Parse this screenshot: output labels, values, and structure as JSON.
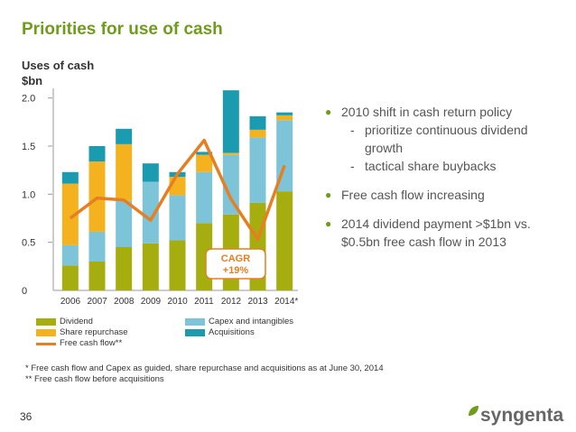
{
  "slide": {
    "title": "Priorities for use of cash",
    "subtitle_line1": "Uses of cash",
    "subtitle_line2": "$bn",
    "page_number": "36",
    "logo_text": "syngenta"
  },
  "bullets": [
    {
      "text": "2010 shift in cash return policy",
      "subs": [
        "prioritize continuous dividend growth",
        "tactical share buybacks"
      ]
    },
    {
      "text": "Free cash flow increasing",
      "subs": []
    },
    {
      "text": "2014 dividend payment >$1bn vs. $0.5bn free cash flow in 2013",
      "subs": []
    }
  ],
  "legend": [
    {
      "label": "Dividend",
      "color": "#a5ad0f",
      "kind": "box"
    },
    {
      "label": "Capex and intangibles",
      "color": "#7ec4d8",
      "kind": "box"
    },
    {
      "label": "Share repurchase",
      "color": "#f5b21f",
      "kind": "box"
    },
    {
      "label": "Acquisitions",
      "color": "#1a9bb0",
      "kind": "box"
    },
    {
      "label": "Free cash flow**",
      "color": "#e67e22",
      "kind": "line"
    }
  ],
  "notes": [
    "*   Free cash flow and Capex as guided, share repurchase and acquisitions as at June 30, 2014",
    "**  Free cash flow before acquisitions"
  ],
  "chart_data": {
    "type": "bar",
    "stacked": true,
    "categories": [
      "2006",
      "2007",
      "2008",
      "2009",
      "2010",
      "2011",
      "2012",
      "2013",
      "2014*"
    ],
    "ylim": [
      0,
      2.1
    ],
    "yticks": [
      "0",
      "0.5",
      "1.0",
      "1.5",
      "2.0"
    ],
    "ytick_values": [
      0,
      0.5,
      1.0,
      1.5,
      2.0
    ],
    "series": [
      {
        "name": "Dividend",
        "color": "#a5ad0f",
        "values": [
          0.26,
          0.3,
          0.45,
          0.49,
          0.52,
          0.7,
          0.79,
          0.91,
          1.03
        ]
      },
      {
        "name": "Capex and intangibles",
        "color": "#7ec4d8",
        "values": [
          0.21,
          0.31,
          0.48,
          0.64,
          0.47,
          0.53,
          0.62,
          0.68,
          0.74
        ]
      },
      {
        "name": "Share repurchase",
        "color": "#f5b21f",
        "values": [
          0.64,
          0.73,
          0.59,
          0.0,
          0.19,
          0.18,
          0.02,
          0.08,
          0.05
        ]
      },
      {
        "name": "Acquisitions",
        "color": "#1a9bb0",
        "values": [
          0.12,
          0.16,
          0.16,
          0.19,
          0.05,
          0.03,
          0.65,
          0.14,
          0.03
        ]
      }
    ],
    "line": {
      "name": "Free cash flow**",
      "color": "#e67e22",
      "values": [
        0.75,
        0.96,
        0.94,
        0.73,
        1.21,
        1.56,
        0.95,
        0.53,
        1.3
      ]
    },
    "annotation": {
      "line1": "CAGR",
      "line2": "+19%"
    }
  }
}
